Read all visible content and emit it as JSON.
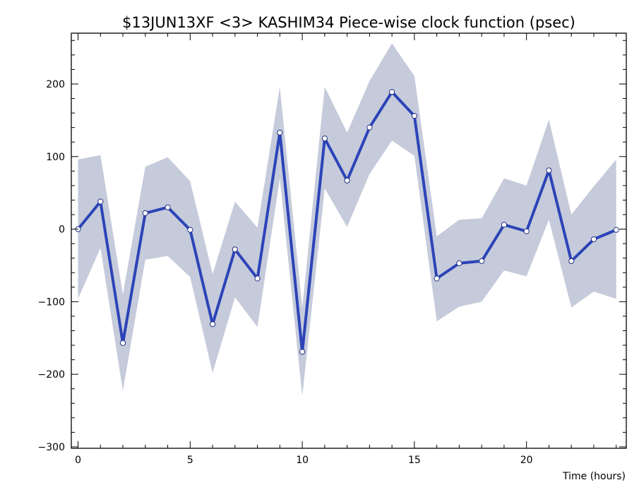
{
  "chart_data": {
    "type": "line",
    "title": "$13JUN13XF <3>  KASHIM34  Piece-wise clock function (psec)",
    "xlabel": "Time (hours)",
    "ylabel": "",
    "xlim": [
      -0.3,
      24.45
    ],
    "ylim": [
      -302,
      270
    ],
    "xticks": [
      0,
      5,
      10,
      15,
      20
    ],
    "yticks": [
      -300,
      -200,
      -100,
      0,
      100,
      200
    ],
    "xtick_labels": [
      "0",
      "5",
      "10",
      "15",
      "20"
    ],
    "ytick_labels": [
      "−300",
      "−200",
      "−100",
      "0",
      "100",
      "200"
    ],
    "grid": false,
    "legend": "none",
    "colors": {
      "line": "#2c44b8",
      "band": "#c6cbdb",
      "marker_fill": "#ffffff",
      "marker_stroke": "#1f2f80",
      "frame": "#000000"
    },
    "series": [
      {
        "x": [
          0,
          1,
          2,
          3,
          4,
          5,
          6,
          7,
          8,
          9,
          10,
          11,
          12,
          13,
          14,
          15,
          16,
          17,
          18,
          19,
          20,
          21,
          22,
          23,
          24
        ],
        "values": [
          0,
          38,
          -157,
          22,
          30,
          -1,
          -131,
          -28,
          -68,
          133,
          -169,
          125,
          67,
          140,
          189,
          156,
          -68,
          -47,
          -44,
          6,
          -3,
          81,
          -44,
          -14,
          -1
        ],
        "upper": [
          96,
          102,
          -90,
          86,
          99,
          66,
          -62,
          38,
          2,
          196,
          -108,
          196,
          133,
          204,
          256,
          211,
          -10,
          13,
          15,
          70,
          60,
          151,
          20,
          59,
          96
        ],
        "lower": [
          -96,
          -26,
          -223,
          -42,
          -37,
          -66,
          -198,
          -94,
          -135,
          70,
          -230,
          56,
          3,
          76,
          122,
          101,
          -127,
          -107,
          -100,
          -57,
          -65,
          13,
          -108,
          -86,
          -96
        ]
      }
    ]
  }
}
